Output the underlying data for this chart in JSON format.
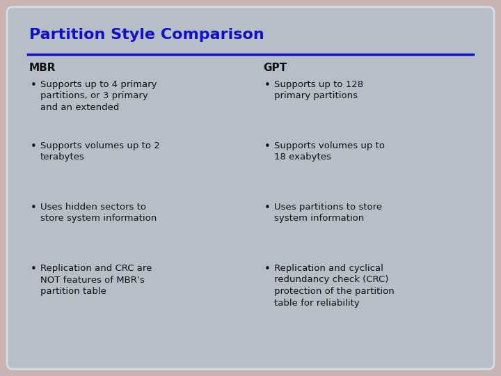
{
  "title": "Partition Style Comparison",
  "title_color": "#1010cc",
  "title_fontsize": 16,
  "bg_outer": "#c8b4b4",
  "bg_inner": "#b8bec8",
  "divider_color": "#1010cc",
  "col1_header": "MBR",
  "col2_header": "GPT",
  "header_color": "#111111",
  "header_fontsize": 11,
  "bullet_color": "#111111",
  "bullet_fontsize": 9.5,
  "col1_bullets": [
    "Supports up to 4 primary\npartitions, or 3 primary\nand an extended",
    "Supports volumes up to 2\nterabytes",
    "Uses hidden sectors to\nstore system information",
    "Replication and CRC are\nNOT features of MBR’s\npartition table"
  ],
  "col2_bullets": [
    "Supports up to 128\nprimary partitions",
    "Supports volumes up to\n18 exabytes",
    "Uses partitions to store\nsystem information",
    "Replication and cyclical\nredundancy check (CRC)\nprotection of the partition\ntable for reliability"
  ]
}
